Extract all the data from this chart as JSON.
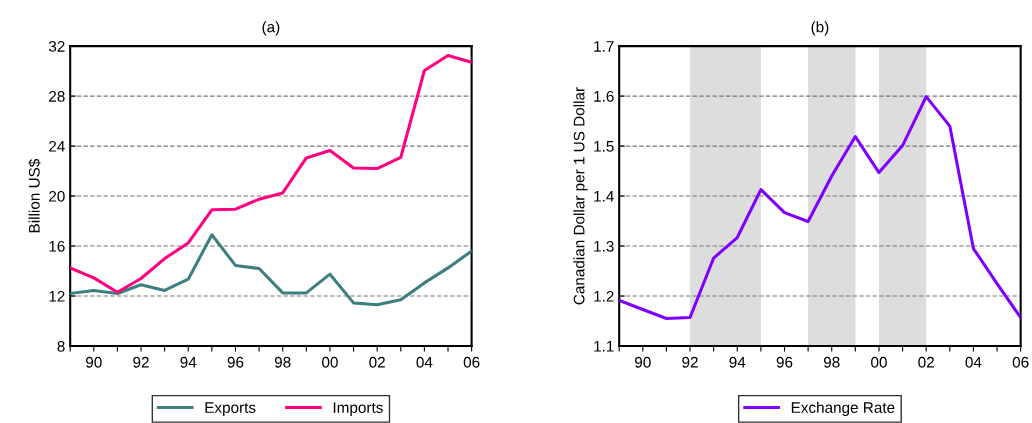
{
  "chart_data": [
    {
      "type": "line",
      "title": "(a)",
      "ylabel": "Billion US$",
      "x": [
        1989,
        1990,
        1991,
        1992,
        1993,
        1994,
        1995,
        1996,
        1997,
        1998,
        1999,
        2000,
        2001,
        2002,
        2003,
        2004,
        2005,
        2006
      ],
      "series": [
        {
          "name": "Exports",
          "color": "#3d7f7f",
          "values": [
            12.2,
            12.45,
            12.2,
            12.9,
            12.45,
            13.35,
            16.9,
            14.45,
            14.2,
            12.25,
            12.25,
            13.75,
            11.45,
            11.3,
            11.7,
            13.05,
            14.25,
            15.6
          ]
        },
        {
          "name": "Imports",
          "color": "#ff0080",
          "values": [
            14.25,
            13.45,
            12.3,
            13.4,
            15.0,
            16.25,
            18.9,
            18.95,
            19.75,
            20.25,
            23.05,
            23.65,
            22.25,
            22.2,
            23.1,
            30.05,
            31.25,
            30.7
          ]
        }
      ],
      "xlim": [
        1989,
        2006
      ],
      "xticks": [
        {
          "value": 1989,
          "label": null
        },
        {
          "value": 1990,
          "label": "90"
        },
        {
          "value": 1991,
          "label": null
        },
        {
          "value": 1992,
          "label": "92"
        },
        {
          "value": 1993,
          "label": null
        },
        {
          "value": 1994,
          "label": "94"
        },
        {
          "value": 1995,
          "label": null
        },
        {
          "value": 1996,
          "label": "96"
        },
        {
          "value": 1997,
          "label": null
        },
        {
          "value": 1998,
          "label": "98"
        },
        {
          "value": 1999,
          "label": null
        },
        {
          "value": 2000,
          "label": "00"
        },
        {
          "value": 2001,
          "label": null
        },
        {
          "value": 2002,
          "label": "02"
        },
        {
          "value": 2003,
          "label": null
        },
        {
          "value": 2004,
          "label": "04"
        },
        {
          "value": 2005,
          "label": null
        },
        {
          "value": 2006,
          "label": "06"
        }
      ],
      "ylim": [
        8,
        32
      ],
      "yticks": [
        8,
        12,
        16,
        20,
        24,
        28,
        32
      ],
      "grid": "y",
      "legend": "bottom",
      "line_style": "solid",
      "marker": "none"
    },
    {
      "type": "line",
      "title": "(b)",
      "ylabel": "Canadian Dollar per 1 US Dollar",
      "x": [
        1989,
        1990,
        1991,
        1992,
        1993,
        1994,
        1995,
        1996,
        1997,
        1998,
        1999,
        2000,
        2001,
        2002,
        2003,
        2004,
        2005,
        2006
      ],
      "series": [
        {
          "name": "Exchange Rate",
          "color": "#8000ff",
          "values": [
            1.191,
            1.173,
            1.155,
            1.157,
            1.276,
            1.317,
            1.413,
            1.367,
            1.349,
            1.44,
            1.519,
            1.447,
            1.501,
            1.599,
            1.54,
            1.295,
            1.225,
            1.157
          ]
        }
      ],
      "bands": [
        {
          "axis": "x",
          "from": 1992,
          "to": 1995,
          "color": "#dddddd"
        },
        {
          "axis": "x",
          "from": 1997,
          "to": 1999,
          "color": "#dddddd"
        },
        {
          "axis": "x",
          "from": 2000,
          "to": 2002,
          "color": "#dddddd"
        }
      ],
      "xlim": [
        1989,
        2006
      ],
      "xticks": [
        {
          "value": 1989,
          "label": null
        },
        {
          "value": 1990,
          "label": "90"
        },
        {
          "value": 1991,
          "label": null
        },
        {
          "value": 1992,
          "label": "92"
        },
        {
          "value": 1993,
          "label": null
        },
        {
          "value": 1994,
          "label": "94"
        },
        {
          "value": 1995,
          "label": null
        },
        {
          "value": 1996,
          "label": "96"
        },
        {
          "value": 1997,
          "label": null
        },
        {
          "value": 1998,
          "label": "98"
        },
        {
          "value": 1999,
          "label": null
        },
        {
          "value": 2000,
          "label": "00"
        },
        {
          "value": 2001,
          "label": null
        },
        {
          "value": 2002,
          "label": "02"
        },
        {
          "value": 2003,
          "label": null
        },
        {
          "value": 2004,
          "label": "04"
        },
        {
          "value": 2005,
          "label": null
        },
        {
          "value": 2006,
          "label": "06"
        }
      ],
      "ylim": [
        1.1,
        1.7
      ],
      "yticks": [
        1.1,
        1.2,
        1.3,
        1.4,
        1.5,
        1.6,
        1.7
      ],
      "grid": "y",
      "legend": "bottom",
      "line_style": "solid",
      "marker": "none"
    }
  ]
}
